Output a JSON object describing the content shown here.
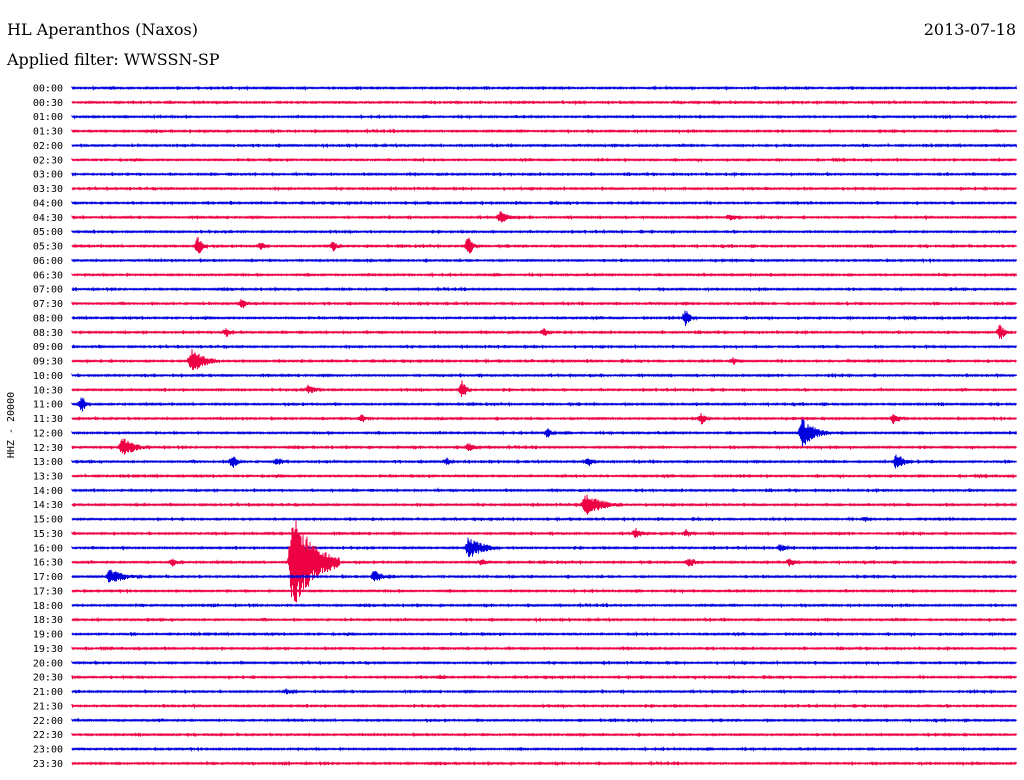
{
  "header": {
    "station": "HL Aperanthos (Naxos)",
    "date": "2013-07-18",
    "filter_prefix": "Applied filter: ",
    "filter_name": "WWSSN-SP"
  },
  "chart_data": {
    "type": "line",
    "title": "HL Aperanthos (Naxos)",
    "subtitle": "Applied filter: WWSSN-SP",
    "ylabel": "HHZ - 20000",
    "xlabel": "",
    "grid": false,
    "colors": {
      "even_rows": "#0000dd",
      "odd_rows": "#ee0044",
      "text": "#000000"
    },
    "rows": [
      "00:00",
      "00:30",
      "01:00",
      "01:30",
      "02:00",
      "02:30",
      "03:00",
      "03:30",
      "04:00",
      "04:30",
      "05:00",
      "05:30",
      "06:00",
      "06:30",
      "07:00",
      "07:30",
      "08:00",
      "08:30",
      "09:00",
      "09:30",
      "10:00",
      "10:30",
      "11:00",
      "11:30",
      "12:00",
      "12:30",
      "13:00",
      "13:30",
      "14:00",
      "14:30",
      "15:00",
      "15:30",
      "16:00",
      "16:30",
      "17:00",
      "17:30",
      "18:00",
      "18:30",
      "19:00",
      "19:30",
      "20:00",
      "20:30",
      "21:00",
      "21:30",
      "22:00",
      "22:30",
      "23:00",
      "23:30"
    ],
    "row_duration_minutes": 30,
    "events": [
      {
        "row": "04:30",
        "minute": 13.6,
        "amplitude": 0.35,
        "duration_min": 0.6
      },
      {
        "row": "04:30",
        "minute": 20.9,
        "amplitude": 0.25,
        "duration_min": 0.5
      },
      {
        "row": "05:30",
        "minute": 4.0,
        "amplitude": 0.6,
        "duration_min": 0.3
      },
      {
        "row": "05:30",
        "minute": 6.0,
        "amplitude": 0.25,
        "duration_min": 0.3
      },
      {
        "row": "05:30",
        "minute": 8.3,
        "amplitude": 0.3,
        "duration_min": 0.3
      },
      {
        "row": "05:30",
        "minute": 12.6,
        "amplitude": 0.6,
        "duration_min": 0.3
      },
      {
        "row": "07:30",
        "minute": 5.4,
        "amplitude": 0.3,
        "duration_min": 0.3
      },
      {
        "row": "08:00",
        "minute": 19.5,
        "amplitude": 0.5,
        "duration_min": 0.3
      },
      {
        "row": "08:30",
        "minute": 4.9,
        "amplitude": 0.3,
        "duration_min": 0.3
      },
      {
        "row": "08:30",
        "minute": 15.0,
        "amplitude": 0.25,
        "duration_min": 0.3
      },
      {
        "row": "08:30",
        "minute": 29.5,
        "amplitude": 0.5,
        "duration_min": 0.3
      },
      {
        "row": "09:30",
        "minute": 3.8,
        "amplitude": 0.7,
        "duration_min": 0.9
      },
      {
        "row": "09:30",
        "minute": 21.0,
        "amplitude": 0.2,
        "duration_min": 0.4
      },
      {
        "row": "10:30",
        "minute": 7.5,
        "amplitude": 0.25,
        "duration_min": 0.6
      },
      {
        "row": "10:30",
        "minute": 12.4,
        "amplitude": 0.5,
        "duration_min": 0.3
      },
      {
        "row": "11:00",
        "minute": 0.3,
        "amplitude": 0.5,
        "duration_min": 0.3
      },
      {
        "row": "11:30",
        "minute": 9.2,
        "amplitude": 0.3,
        "duration_min": 0.3
      },
      {
        "row": "11:30",
        "minute": 20.0,
        "amplitude": 0.35,
        "duration_min": 0.3
      },
      {
        "row": "11:30",
        "minute": 26.1,
        "amplitude": 0.3,
        "duration_min": 0.5
      },
      {
        "row": "12:00",
        "minute": 15.1,
        "amplitude": 0.3,
        "duration_min": 0.3
      },
      {
        "row": "12:00",
        "minute": 23.2,
        "amplitude": 0.75,
        "duration_min": 0.9
      },
      {
        "row": "12:30",
        "minute": 1.6,
        "amplitude": 0.5,
        "duration_min": 0.9
      },
      {
        "row": "12:30",
        "minute": 12.6,
        "amplitude": 0.25,
        "duration_min": 0.5
      },
      {
        "row": "13:00",
        "minute": 5.1,
        "amplitude": 0.45,
        "duration_min": 0.3
      },
      {
        "row": "13:00",
        "minute": 6.5,
        "amplitude": 0.25,
        "duration_min": 0.5
      },
      {
        "row": "13:00",
        "minute": 11.9,
        "amplitude": 0.25,
        "duration_min": 0.3
      },
      {
        "row": "13:00",
        "minute": 16.4,
        "amplitude": 0.3,
        "duration_min": 0.3
      },
      {
        "row": "13:00",
        "minute": 26.2,
        "amplitude": 0.5,
        "duration_min": 0.5
      },
      {
        "row": "14:30",
        "minute": 16.3,
        "amplitude": 0.6,
        "duration_min": 1.2
      },
      {
        "row": "15:00",
        "minute": 25.2,
        "amplitude": 0.2,
        "duration_min": 0.3
      },
      {
        "row": "15:30",
        "minute": 17.9,
        "amplitude": 0.3,
        "duration_min": 0.5
      },
      {
        "row": "15:30",
        "minute": 19.5,
        "amplitude": 0.25,
        "duration_min": 0.4
      },
      {
        "row": "16:00",
        "minute": 12.6,
        "amplitude": 0.6,
        "duration_min": 1.0
      },
      {
        "row": "16:00",
        "minute": 22.5,
        "amplitude": 0.25,
        "duration_min": 0.4
      },
      {
        "row": "16:30",
        "minute": 3.2,
        "amplitude": 0.25,
        "duration_min": 0.4
      },
      {
        "row": "16:30",
        "minute": 7.0,
        "amplitude": 2.6,
        "duration_min": 1.5
      },
      {
        "row": "16:30",
        "minute": 13.0,
        "amplitude": 0.2,
        "duration_min": 0.5
      },
      {
        "row": "16:30",
        "minute": 19.6,
        "amplitude": 0.3,
        "duration_min": 0.5
      },
      {
        "row": "16:30",
        "minute": 22.8,
        "amplitude": 0.25,
        "duration_min": 0.4
      },
      {
        "row": "17:00",
        "minute": 1.2,
        "amplitude": 0.45,
        "duration_min": 1.0
      },
      {
        "row": "17:00",
        "minute": 9.6,
        "amplitude": 0.35,
        "duration_min": 0.6
      },
      {
        "row": "20:30",
        "minute": 11.7,
        "amplitude": 0.15,
        "duration_min": 0.3
      },
      {
        "row": "21:00",
        "minute": 6.8,
        "amplitude": 0.15,
        "duration_min": 0.5
      }
    ]
  }
}
